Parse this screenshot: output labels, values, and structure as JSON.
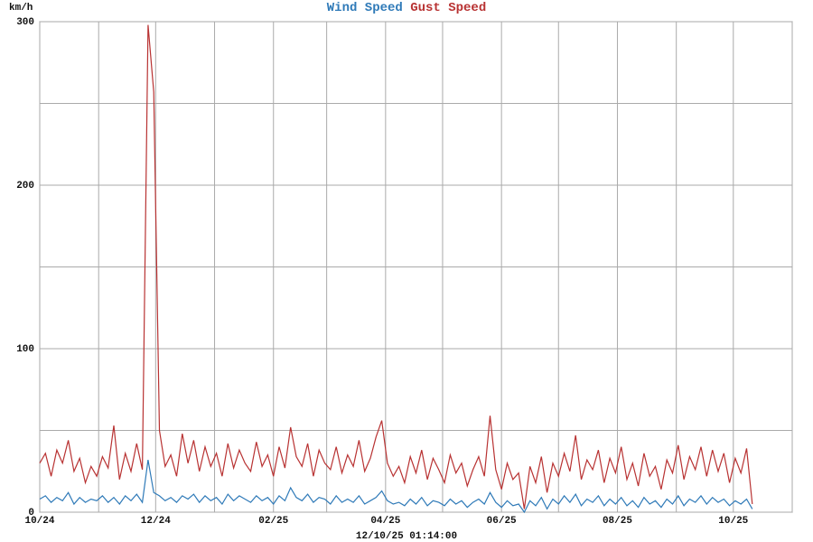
{
  "chart_data": {
    "type": "line",
    "title_parts": [
      "Wind Speed",
      "Gust Speed"
    ],
    "y_label": "km/h",
    "footer": "12/10/25 01:14:00",
    "xlim": [
      0,
      396
    ],
    "xticks": [
      {
        "value": 0,
        "label": "10/24"
      },
      {
        "value": 61,
        "label": "12/24"
      },
      {
        "value": 123,
        "label": "02/25"
      },
      {
        "value": 182,
        "label": "04/25"
      },
      {
        "value": 243,
        "label": "06/25"
      },
      {
        "value": 304,
        "label": "08/25"
      },
      {
        "value": 365,
        "label": "10/25"
      }
    ],
    "minor_xticks": [
      31,
      92,
      151,
      212,
      273,
      335,
      396
    ],
    "ylim": [
      0,
      300
    ],
    "yticks": [
      0,
      100,
      200,
      300
    ],
    "minor_yticks": [
      50,
      150,
      250
    ],
    "grid": true,
    "x": [
      0,
      3,
      6,
      9,
      12,
      15,
      18,
      21,
      24,
      27,
      30,
      33,
      36,
      39,
      42,
      45,
      48,
      51,
      54,
      57,
      60,
      63,
      66,
      69,
      72,
      75,
      78,
      81,
      84,
      87,
      90,
      93,
      96,
      99,
      102,
      105,
      108,
      111,
      114,
      117,
      120,
      123,
      126,
      129,
      132,
      135,
      138,
      141,
      144,
      147,
      150,
      153,
      156,
      159,
      162,
      165,
      168,
      171,
      174,
      177,
      180,
      183,
      186,
      189,
      192,
      195,
      198,
      201,
      204,
      207,
      210,
      213,
      216,
      219,
      222,
      225,
      228,
      231,
      234,
      237,
      240,
      243,
      246,
      249,
      252,
      255,
      258,
      261,
      264,
      267,
      270,
      273,
      276,
      279,
      282,
      285,
      288,
      291,
      294,
      297,
      300,
      303,
      306,
      309,
      312,
      315,
      318,
      321,
      324,
      327,
      330,
      333,
      336,
      339,
      342,
      345,
      348,
      351,
      354,
      357,
      360,
      363,
      366,
      369,
      372,
      375
    ],
    "series": [
      {
        "name": "Wind Speed",
        "color": "#2f7ab8",
        "values": [
          8,
          10,
          6,
          9,
          7,
          12,
          5,
          9,
          6,
          8,
          7,
          10,
          6,
          9,
          5,
          10,
          7,
          11,
          6,
          32,
          12,
          10,
          7,
          9,
          6,
          10,
          8,
          11,
          6,
          10,
          7,
          9,
          5,
          11,
          7,
          10,
          8,
          6,
          10,
          7,
          9,
          5,
          10,
          7,
          15,
          9,
          7,
          11,
          6,
          9,
          8,
          5,
          10,
          6,
          8,
          6,
          10,
          5,
          7,
          9,
          13,
          7,
          5,
          6,
          4,
          8,
          5,
          9,
          4,
          7,
          6,
          4,
          8,
          5,
          7,
          3,
          6,
          8,
          5,
          12,
          6,
          3,
          7,
          4,
          5,
          0,
          7,
          4,
          9,
          2,
          8,
          5,
          10,
          6,
          11,
          4,
          8,
          6,
          10,
          4,
          8,
          5,
          9,
          4,
          7,
          3,
          9,
          5,
          7,
          3,
          8,
          5,
          10,
          4,
          8,
          6,
          10,
          5,
          9,
          6,
          8,
          4,
          7,
          5,
          8,
          2
        ]
      },
      {
        "name": "Gust Speed",
        "color": "#b83232",
        "values": [
          30,
          36,
          22,
          38,
          30,
          44,
          25,
          33,
          18,
          28,
          22,
          34,
          27,
          53,
          20,
          36,
          25,
          42,
          26,
          298,
          257,
          50,
          28,
          35,
          22,
          48,
          30,
          44,
          25,
          40,
          28,
          36,
          22,
          42,
          27,
          38,
          30,
          25,
          43,
          28,
          35,
          22,
          40,
          27,
          52,
          34,
          28,
          42,
          22,
          38,
          30,
          26,
          40,
          24,
          35,
          28,
          44,
          25,
          33,
          46,
          56,
          30,
          22,
          28,
          18,
          34,
          24,
          38,
          20,
          33,
          26,
          18,
          35,
          24,
          30,
          16,
          26,
          34,
          22,
          59,
          26,
          14,
          30,
          20,
          24,
          2,
          28,
          18,
          34,
          12,
          30,
          22,
          36,
          25,
          47,
          20,
          32,
          26,
          38,
          18,
          33,
          24,
          40,
          20,
          30,
          16,
          36,
          22,
          28,
          14,
          32,
          24,
          41,
          20,
          34,
          26,
          40,
          22,
          38,
          25,
          36,
          18,
          33,
          24,
          39,
          5
        ]
      }
    ]
  }
}
